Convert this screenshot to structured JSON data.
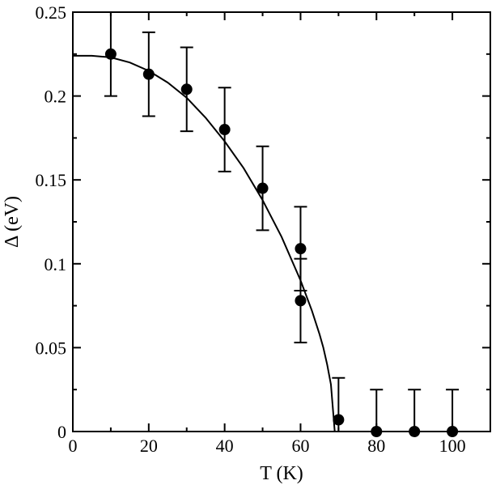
{
  "chart_data": {
    "type": "scatter",
    "xlabel": "T (K)",
    "ylabel": "Δ (eV)",
    "xlim": [
      0,
      110
    ],
    "ylim": [
      0,
      0.25
    ],
    "x_ticks": [
      0,
      20,
      40,
      60,
      80,
      100
    ],
    "x_tick_labels": [
      "0",
      "20",
      "40",
      "60",
      "80",
      "100"
    ],
    "y_ticks": [
      0,
      0.05,
      0.1,
      0.15,
      0.2,
      0.25
    ],
    "y_tick_labels": [
      "0",
      "0.05",
      "0.1",
      "0.15",
      "0.2",
      "0.25"
    ],
    "grid": false,
    "points": [
      {
        "x": 10,
        "y": 0.225,
        "err": 0.025
      },
      {
        "x": 20,
        "y": 0.213,
        "err": 0.025
      },
      {
        "x": 30,
        "y": 0.204,
        "err": 0.025
      },
      {
        "x": 40,
        "y": 0.18,
        "err": 0.025
      },
      {
        "x": 50,
        "y": 0.145,
        "err": 0.025
      },
      {
        "x": 60,
        "y": 0.109,
        "err": 0.025
      },
      {
        "x": 60,
        "y": 0.078,
        "err": 0.025
      },
      {
        "x": 70,
        "y": 0.007,
        "err": 0.025
      },
      {
        "x": 80,
        "y": 0.0,
        "err": 0.025
      },
      {
        "x": 90,
        "y": 0.0,
        "err": 0.025
      },
      {
        "x": 100,
        "y": 0.0,
        "err": 0.025
      }
    ],
    "fit_curve": {
      "x": [
        0,
        5,
        10,
        15,
        20,
        25,
        30,
        35,
        40,
        45,
        50,
        55,
        60,
        63,
        65,
        66,
        67,
        68,
        69
      ],
      "y": [
        0.224,
        0.224,
        0.223,
        0.22,
        0.215,
        0.208,
        0.199,
        0.187,
        0.173,
        0.157,
        0.138,
        0.116,
        0.09,
        0.072,
        0.058,
        0.05,
        0.04,
        0.028,
        0.0
      ]
    }
  }
}
